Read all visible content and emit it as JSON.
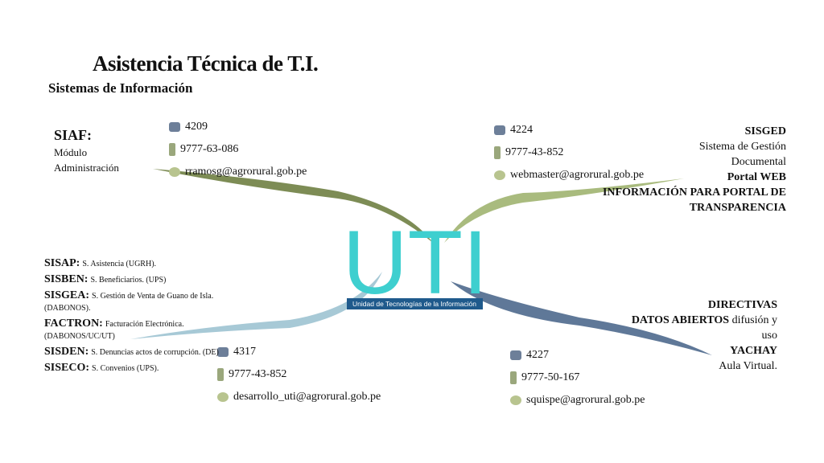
{
  "title": "Asistencia Técnica de T.I.",
  "subtitle": "Sistemas de Información",
  "center": {
    "logo": "UTI",
    "caption": "Unidad de Tecnologías de la Información"
  },
  "top_left": {
    "heading": "SIAF:",
    "lines": [
      "Módulo",
      "Administración"
    ],
    "phone": "4209",
    "mobile": "9777-63-086",
    "email": "rramosg@agrorural.gob.pe"
  },
  "top_right": {
    "lines": [
      {
        "text": "SISGED",
        "bold": true
      },
      {
        "text": "Sistema de Gestión",
        "bold": false
      },
      {
        "text": "Documental",
        "bold": false
      },
      {
        "text": "Portal WEB",
        "bold": true
      },
      {
        "text": "INFORMACIÓN PARA PORTAL DE",
        "bold": true
      },
      {
        "text": "TRANSPARENCIA",
        "bold": true
      }
    ],
    "phone": "4224",
    "mobile": "9777-43-852",
    "email": "webmaster@agrorural.gob.pe"
  },
  "bottom_left": {
    "systems": [
      {
        "name": "SISAP:",
        "desc": "S. Asistencia (UGRH)."
      },
      {
        "name": "SISBEN:",
        "desc": "S. Beneficiarios. (UPS)"
      },
      {
        "name": "SISGEA:",
        "desc": "S. Gestión de Venta de Guano de Isla. (DABONOS)."
      },
      {
        "name": "FACTRON:",
        "desc": "Facturación Electrónica. (DABONOS/UC/UT)"
      },
      {
        "name": "SISDEN:",
        "desc": "S. Denuncias actos de corrupción. (DE)"
      },
      {
        "name": "SISECO:",
        "desc": "S. Convenios (UPS)."
      }
    ],
    "phone": "4317",
    "mobile": "9777-43-852",
    "email": "desarrollo_uti@agrorural.gob.pe"
  },
  "bottom_right": {
    "lines": [
      {
        "bold": "DIRECTIVAS",
        "normal": null
      },
      {
        "bold": "DATOS ABIERTOS",
        "normal": "difusión y uso"
      },
      {
        "bold": "YACHAY",
        "normal": null
      },
      {
        "bold": null,
        "normal": "Aula Virtual."
      }
    ],
    "phone": "4227",
    "mobile": "9777-50-167",
    "email": "squispe@agrorural.gob.pe"
  }
}
